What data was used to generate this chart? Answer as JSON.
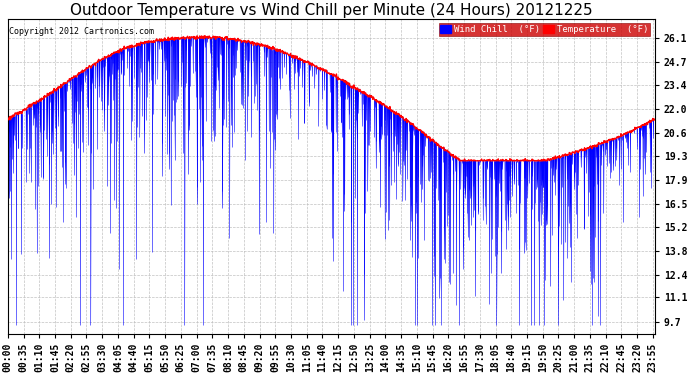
{
  "title": "Outdoor Temperature vs Wind Chill per Minute (24 Hours) 20121225",
  "copyright": "Copyright 2012 Cartronics.com",
  "legend_wind_chill": "Wind Chill  (°F)",
  "legend_temperature": "Temperature  (°F)",
  "y_ticks": [
    9.7,
    11.1,
    12.4,
    13.8,
    15.2,
    16.5,
    17.9,
    19.3,
    20.6,
    22.0,
    23.4,
    24.7,
    26.1
  ],
  "ylim": [
    9.0,
    27.2
  ],
  "bg_color": "#ffffff",
  "plot_bg_color": "#ffffff",
  "wind_chill_color": "#0000ff",
  "temperature_color": "#ff0000",
  "grid_color": "#bbbbbb",
  "title_fontsize": 11,
  "tick_fontsize": 7,
  "n_minutes": 1440,
  "x_tick_interval": 35,
  "x_tick_labels": [
    "00:00",
    "00:35",
    "01:10",
    "01:45",
    "02:20",
    "02:55",
    "03:30",
    "04:05",
    "04:40",
    "05:15",
    "05:50",
    "06:25",
    "07:00",
    "07:35",
    "08:10",
    "08:45",
    "09:20",
    "09:55",
    "10:30",
    "11:05",
    "11:40",
    "12:15",
    "12:50",
    "13:25",
    "14:00",
    "14:35",
    "15:10",
    "15:45",
    "16:20",
    "16:55",
    "17:30",
    "18:05",
    "18:40",
    "19:15",
    "19:50",
    "20:25",
    "21:00",
    "21:35",
    "22:10",
    "22:45",
    "23:20",
    "23:55"
  ]
}
